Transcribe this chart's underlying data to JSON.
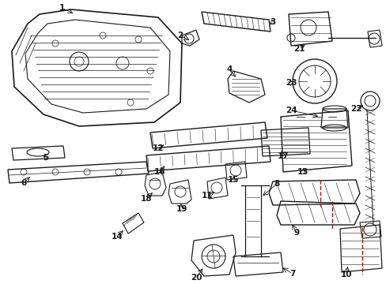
{
  "bg_color": "#ffffff",
  "line_color": "#1a1a1a",
  "red_color": "#cc0000",
  "fig_width": 4.89,
  "fig_height": 3.6,
  "dpi": 100
}
